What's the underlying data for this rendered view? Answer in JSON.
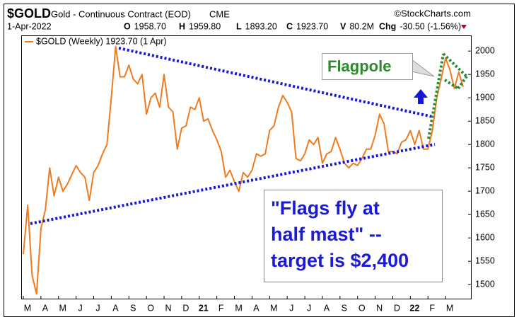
{
  "header": {
    "symbol": "$GOLD",
    "name": "Gold - Continuous Contract (EOD)",
    "exchange": "CME",
    "source": "©StockCharts.com",
    "date": "1-Apr-2022",
    "quote": [
      {
        "label": "O",
        "value": "1958.70"
      },
      {
        "label": "H",
        "value": "1959.80"
      },
      {
        "label": "L",
        "value": "1893.20"
      },
      {
        "label": "C",
        "value": "1923.70"
      },
      {
        "label": "V",
        "value": "80.2M"
      },
      {
        "label": "Chg",
        "value": "-30.50 (-1.56%)"
      }
    ]
  },
  "chart_data": {
    "type": "line",
    "categories": [
      "M",
      null,
      null,
      null,
      "A",
      null,
      null,
      null,
      "M",
      null,
      null,
      null,
      "J",
      null,
      null,
      null,
      "J",
      null,
      null,
      null,
      "A",
      null,
      null,
      null,
      "S",
      null,
      null,
      null,
      "O",
      null,
      null,
      null,
      "N",
      null,
      null,
      null,
      "D",
      null,
      null,
      null,
      "21",
      null,
      null,
      null,
      "F",
      null,
      null,
      null,
      "M",
      null,
      null,
      null,
      "A",
      null,
      null,
      null,
      "M",
      null,
      null,
      null,
      "J",
      null,
      null,
      null,
      "J",
      null,
      null,
      null,
      "A",
      null,
      null,
      null,
      "S",
      null,
      null,
      null,
      "O",
      null,
      null,
      null,
      "N",
      null,
      null,
      null,
      "D",
      null,
      null,
      null,
      "22",
      null,
      null,
      null,
      "F",
      null,
      null,
      null,
      "M",
      null,
      null,
      null,
      null
    ],
    "series": [
      {
        "name": "$GOLD (Weekly) 1923.70 (1 Apr)",
        "color": "#f07b1f",
        "values": [
          1565,
          1670,
          1520,
          1480,
          1620,
          1660,
          1750,
          1690,
          1730,
          1700,
          1715,
          1735,
          1755,
          1740,
          1730,
          1680,
          1740,
          1755,
          1780,
          1800,
          1900,
          2010,
          1945,
          1945,
          1970,
          1940,
          1930,
          1950,
          1865,
          1900,
          1910,
          1880,
          1950,
          1880,
          1870,
          1790,
          1835,
          1840,
          1880,
          1875,
          1900,
          1850,
          1855,
          1830,
          1810,
          1785,
          1730,
          1745,
          1720,
          1700,
          1740,
          1730,
          1745,
          1780,
          1775,
          1780,
          1830,
          1840,
          1880,
          1905,
          1890,
          1870,
          1770,
          1765,
          1780,
          1810,
          1800,
          1815,
          1760,
          1780,
          1785,
          1815,
          1790,
          1760,
          1750,
          1760,
          1755,
          1770,
          1790,
          1790,
          1820,
          1865,
          1845,
          1785,
          1785,
          1780,
          1805,
          1810,
          1830,
          1800,
          1830,
          1790,
          1790,
          1830,
          1900,
          1940,
          1985,
          1960,
          1920,
          1955,
          1923.7
        ]
      }
    ],
    "ylim": [
      1470,
      2023
    ],
    "yticks": [
      1500,
      1550,
      1600,
      1650,
      1700,
      1750,
      1800,
      1850,
      1900,
      1950,
      2000
    ],
    "grid": false,
    "annotations": [
      "Flagpole",
      "\"Flags fly at",
      "half mast\" --",
      "target is $2,400"
    ]
  }
}
